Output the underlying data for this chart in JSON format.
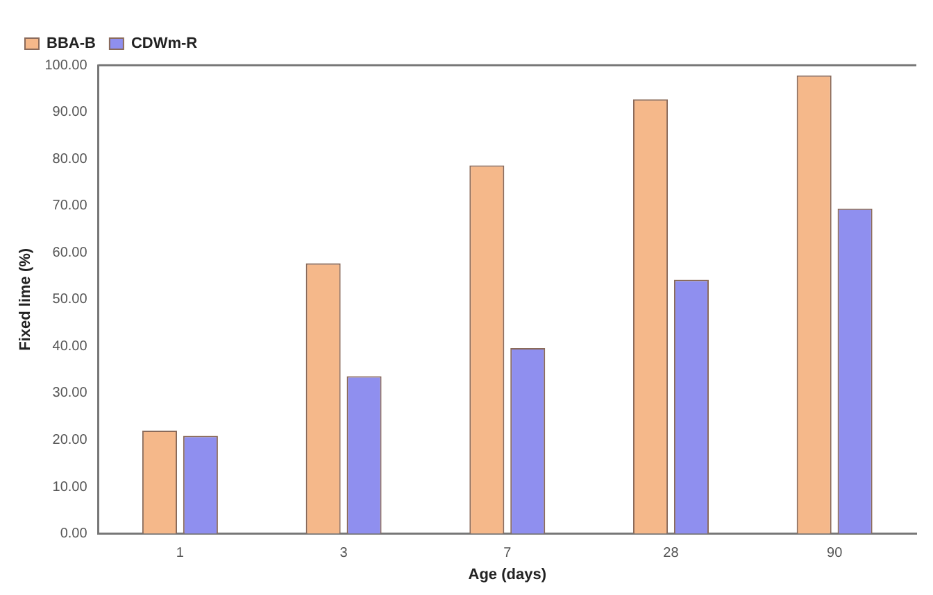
{
  "chart_data": {
    "type": "bar",
    "xlabel": "Age (days)",
    "ylabel": "Fixed lime (%)",
    "categories": [
      "1",
      "3",
      "7",
      "28",
      "90"
    ],
    "series": [
      {
        "name": "BBA-B",
        "color": "#f5b88a",
        "values": [
          22.0,
          57.7,
          78.6,
          92.7,
          97.8
        ]
      },
      {
        "name": "CDWm-R",
        "color": "#8f8fef",
        "values": [
          20.9,
          33.6,
          39.6,
          54.2,
          69.4
        ]
      }
    ],
    "ylim": [
      0,
      100
    ],
    "yticks": [
      {
        "value": 0,
        "label": "0.00"
      },
      {
        "value": 10,
        "label": "10.00"
      },
      {
        "value": 20,
        "label": "20.00"
      },
      {
        "value": 30,
        "label": "30.00"
      },
      {
        "value": 40,
        "label": "40.00"
      },
      {
        "value": 50,
        "label": "50.00"
      },
      {
        "value": 60,
        "label": "60.00"
      },
      {
        "value": 70,
        "label": "70.00"
      },
      {
        "value": 80,
        "label": "80.00"
      },
      {
        "value": 90,
        "label": "90.00"
      },
      {
        "value": 100,
        "label": "100.00"
      }
    ],
    "grid": false,
    "legend": "top left"
  }
}
